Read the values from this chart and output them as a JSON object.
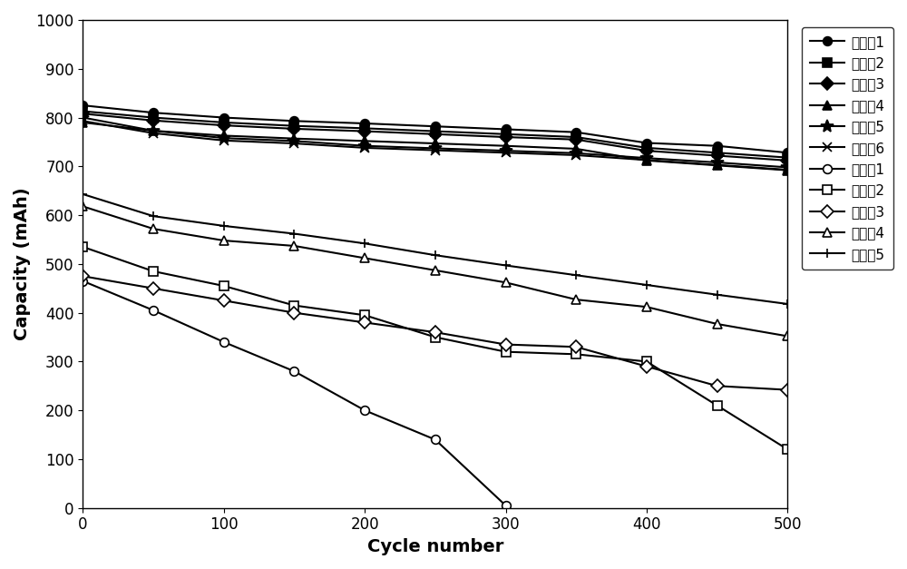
{
  "x_points": [
    0,
    50,
    100,
    150,
    200,
    250,
    300,
    350,
    400,
    450,
    500
  ],
  "series": [
    {
      "name": "实施例1",
      "y": [
        825,
        810,
        800,
        793,
        788,
        782,
        776,
        770,
        748,
        742,
        728
      ],
      "marker": "o",
      "mfc": "black",
      "mec": "black"
    },
    {
      "name": "实施例2",
      "y": [
        813,
        800,
        790,
        783,
        778,
        772,
        766,
        760,
        738,
        728,
        718
      ],
      "marker": "s",
      "mfc": "black",
      "mec": "black"
    },
    {
      "name": "实施例3",
      "y": [
        808,
        794,
        784,
        777,
        772,
        766,
        760,
        755,
        732,
        722,
        712
      ],
      "marker": "D",
      "mfc": "black",
      "mec": "black"
    },
    {
      "name": "实施例4",
      "y": [
        790,
        773,
        763,
        757,
        752,
        747,
        742,
        736,
        712,
        702,
        692
      ],
      "marker": "^",
      "mfc": "black",
      "mec": "black"
    },
    {
      "name": "实施例5",
      "y": [
        800,
        773,
        758,
        752,
        742,
        737,
        732,
        727,
        717,
        708,
        698
      ],
      "marker": "*",
      "mfc": "black",
      "mec": "black"
    },
    {
      "name": "实施例6",
      "y": [
        793,
        768,
        753,
        747,
        738,
        733,
        728,
        723,
        713,
        703,
        693
      ],
      "marker": "x",
      "mfc": "black",
      "mec": "black"
    },
    {
      "name": "对比例1",
      "y": [
        465,
        405,
        340,
        280,
        200,
        140,
        5,
        null,
        null,
        null,
        null
      ],
      "marker": "o",
      "mfc": "white",
      "mec": "black"
    },
    {
      "name": "对比例2",
      "y": [
        535,
        485,
        455,
        415,
        395,
        350,
        320,
        315,
        300,
        210,
        120
      ],
      "marker": "s",
      "mfc": "white",
      "mec": "black"
    },
    {
      "name": "对比例3",
      "y": [
        475,
        450,
        425,
        400,
        380,
        360,
        335,
        330,
        290,
        250,
        242
      ],
      "marker": "D",
      "mfc": "white",
      "mec": "black"
    },
    {
      "name": "对比例4",
      "y": [
        618,
        572,
        548,
        537,
        512,
        487,
        462,
        427,
        412,
        377,
        352
      ],
      "marker": "^",
      "mfc": "white",
      "mec": "black"
    },
    {
      "name": "对比例5",
      "y": [
        643,
        598,
        578,
        562,
        542,
        518,
        497,
        477,
        457,
        437,
        418
      ],
      "marker": "+",
      "mfc": "black",
      "mec": "black"
    }
  ],
  "xlabel": "Cycle number",
  "ylabel": "Capacity (mAh)",
  "xlim": [
    0,
    500
  ],
  "ylim": [
    0,
    1000
  ],
  "yticks": [
    0,
    100,
    200,
    300,
    400,
    500,
    600,
    700,
    800,
    900,
    1000
  ],
  "xticks": [
    0,
    100,
    200,
    300,
    400,
    500
  ],
  "legend_fontsize": 11,
  "axis_label_fontsize": 14,
  "tick_fontsize": 12,
  "linewidth": 1.5,
  "markersize": 7,
  "markersize_star": 10,
  "markeredgewidth": 1.2
}
